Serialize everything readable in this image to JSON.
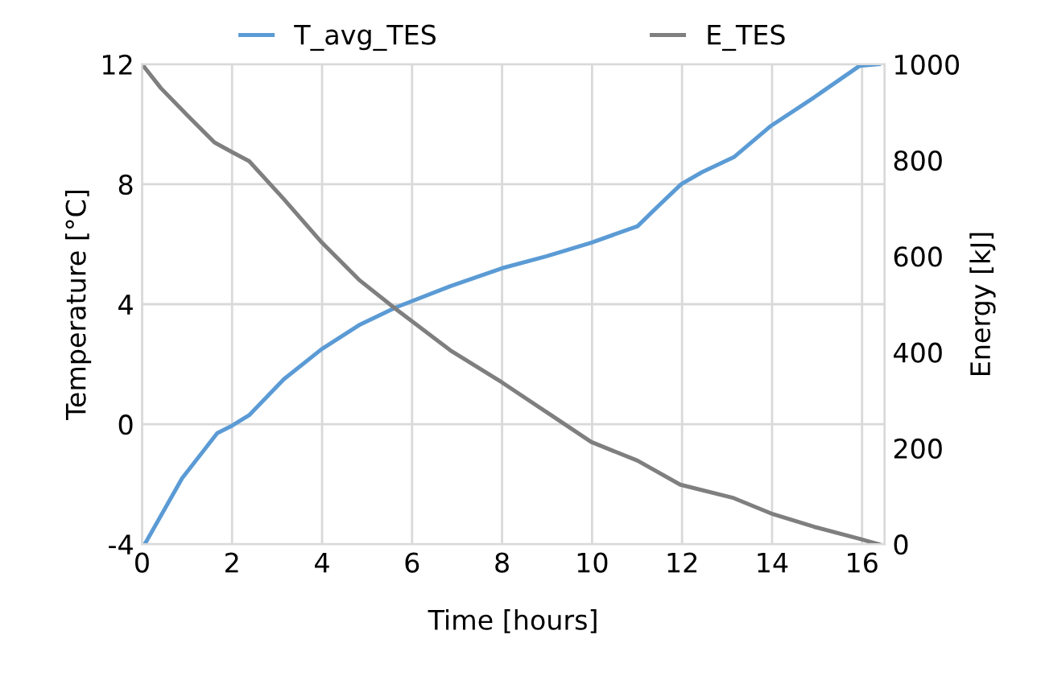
{
  "chart_data": {
    "type": "line",
    "xlabel": "Time [hours]",
    "ylabel": "Temperature [°C]",
    "y2label": "Energy [kJ]",
    "xlim": [
      0,
      16.5
    ],
    "xticks": [
      0,
      2,
      4,
      6,
      8,
      10,
      12,
      14,
      16
    ],
    "ylim": [
      -4,
      12
    ],
    "yticks": [
      -4,
      0,
      4,
      8,
      12
    ],
    "y2lim": [
      0,
      1000
    ],
    "y2ticks": [
      0,
      200,
      400,
      600,
      800,
      1000
    ],
    "grid": true,
    "legend": "top",
    "marker": "none",
    "line_style": "solid",
    "series": [
      {
        "name": "T_avg_TES",
        "color": "#5b9bd5",
        "x": [
          0.06,
          0.89,
          1.67,
          2.0,
          2.38,
          3.15,
          3.99,
          4.82,
          5.65,
          6.85,
          8.0,
          8.99,
          9.98,
          11.01,
          11.49,
          11.98,
          12.44,
          13.15,
          13.98,
          14.94,
          15.95,
          16.37
        ],
        "values": [
          -4.0,
          -1.8,
          -0.3,
          -0.05,
          0.3,
          1.5,
          2.5,
          3.3,
          3.9,
          4.6,
          5.2,
          5.6,
          6.05,
          6.6,
          7.3,
          8.0,
          8.4,
          8.9,
          9.95,
          10.9,
          11.95,
          12.0
        ]
      },
      {
        "name": "E_TES",
        "color": "#7f7f7f",
        "axis": "y2",
        "x": [
          0,
          0.42,
          1.01,
          1.61,
          2.0,
          2.38,
          3.15,
          3.99,
          4.82,
          5.65,
          6.85,
          8.0,
          8.99,
          9.98,
          11.01,
          11.96,
          13.15,
          13.98,
          14.94,
          15.95,
          16.37
        ],
        "values": [
          1000,
          950,
          893,
          837,
          817,
          798,
          719,
          629,
          551,
          489,
          404,
          337,
          275,
          213,
          174,
          124,
          96,
          64,
          36,
          11,
          0
        ]
      }
    ]
  }
}
